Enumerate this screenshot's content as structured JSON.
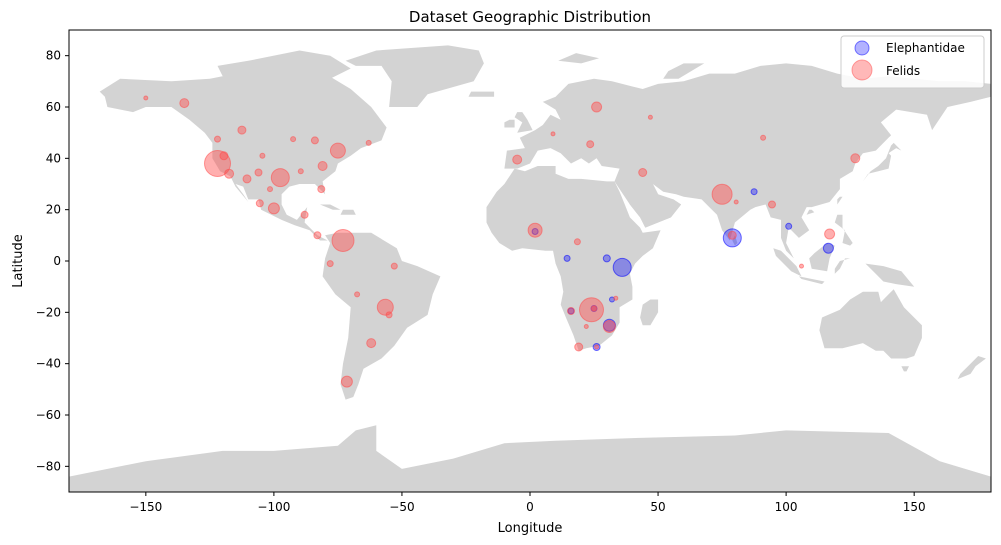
{
  "chart_data": {
    "type": "scatter",
    "title": "Dataset Geographic Distribution",
    "xlabel": "Longitude",
    "ylabel": "Latitude",
    "xlim": [
      -180,
      180
    ],
    "ylim": [
      -90,
      90
    ],
    "x_ticks": [
      -150,
      -100,
      -50,
      0,
      50,
      100,
      150
    ],
    "y_ticks": [
      -80,
      -60,
      -40,
      -20,
      0,
      20,
      40,
      60,
      80
    ],
    "grid": false,
    "legend_position": "top-right",
    "background": "world map (land in light gray)",
    "colors": {
      "land": "#d3d3d3",
      "Elephantidae": "#0000ff",
      "Felids": "#ff4d4d"
    },
    "series": [
      {
        "name": "Elephantidae",
        "color": "#0000ff",
        "points": [
          {
            "x": 36,
            "y": -2.5,
            "size": 9
          },
          {
            "x": 79,
            "y": 9,
            "size": 9
          },
          {
            "x": 31,
            "y": -25,
            "size": 6
          },
          {
            "x": 116.5,
            "y": 5,
            "size": 5
          },
          {
            "x": 30,
            "y": 1,
            "size": 3.5
          },
          {
            "x": 26,
            "y": -33.5,
            "size": 3.5
          },
          {
            "x": 87.5,
            "y": 27,
            "size": 3
          },
          {
            "x": 101,
            "y": 13.5,
            "size": 3
          },
          {
            "x": 14.5,
            "y": 1,
            "size": 3
          },
          {
            "x": 16,
            "y": -19.5,
            "size": 3
          },
          {
            "x": 32,
            "y": -15,
            "size": 2.5
          },
          {
            "x": 25,
            "y": -18.5,
            "size": 3
          },
          {
            "x": 2,
            "y": 11.5,
            "size": 3
          }
        ]
      },
      {
        "name": "Felids",
        "color": "#ff4d4d",
        "points": [
          {
            "x": -122,
            "y": 38,
            "size": 13
          },
          {
            "x": -73,
            "y": 8,
            "size": 11
          },
          {
            "x": 24,
            "y": -19,
            "size": 12
          },
          {
            "x": 75,
            "y": 26,
            "size": 10
          },
          {
            "x": -97.5,
            "y": 32.5,
            "size": 9
          },
          {
            "x": -56.5,
            "y": -18,
            "size": 8
          },
          {
            "x": -75,
            "y": 43,
            "size": 7.5
          },
          {
            "x": 2,
            "y": 12,
            "size": 7
          },
          {
            "x": 31,
            "y": -25.5,
            "size": 6
          },
          {
            "x": -71.5,
            "y": -47,
            "size": 5.5
          },
          {
            "x": -100,
            "y": 20.5,
            "size": 5.5
          },
          {
            "x": 117,
            "y": 10.5,
            "size": 5
          },
          {
            "x": 26,
            "y": 60,
            "size": 5
          },
          {
            "x": -62,
            "y": -32,
            "size": 4.5
          },
          {
            "x": -117.5,
            "y": 34,
            "size": 4.5
          },
          {
            "x": -135,
            "y": 61.5,
            "size": 4.5
          },
          {
            "x": -81,
            "y": 37,
            "size": 4.5
          },
          {
            "x": -5,
            "y": 39.5,
            "size": 4.5
          },
          {
            "x": 127,
            "y": 40,
            "size": 4.5
          },
          {
            "x": 79,
            "y": 10,
            "size": 4
          },
          {
            "x": 19,
            "y": -33.5,
            "size": 4
          },
          {
            "x": -112.5,
            "y": 51,
            "size": 4
          },
          {
            "x": -110.5,
            "y": 32,
            "size": 4
          },
          {
            "x": -119.5,
            "y": 41,
            "size": 4
          },
          {
            "x": 44,
            "y": 34.5,
            "size": 4
          },
          {
            "x": -83,
            "y": 10,
            "size": 3.5
          },
          {
            "x": 16,
            "y": -19.5,
            "size": 3.5
          },
          {
            "x": -106,
            "y": 34.5,
            "size": 3.5
          },
          {
            "x": -84,
            "y": 47,
            "size": 3.5
          },
          {
            "x": -81.5,
            "y": 28,
            "size": 3.5
          },
          {
            "x": 23.5,
            "y": 45.5,
            "size": 3.5
          },
          {
            "x": 94.5,
            "y": 22,
            "size": 3.5
          },
          {
            "x": -105.5,
            "y": 22.5,
            "size": 3.5
          },
          {
            "x": -88,
            "y": 18,
            "size": 3.5
          },
          {
            "x": -53,
            "y": -2,
            "size": 3
          },
          {
            "x": 18.5,
            "y": 7.5,
            "size": 3
          },
          {
            "x": -78,
            "y": -1,
            "size": 3
          },
          {
            "x": -55,
            "y": -21,
            "size": 3
          },
          {
            "x": -67.5,
            "y": -13,
            "size": 2.5
          },
          {
            "x": -92.5,
            "y": 47.5,
            "size": 2.5
          },
          {
            "x": -122,
            "y": 47.5,
            "size": 3
          },
          {
            "x": -104.5,
            "y": 41,
            "size": 2.5
          },
          {
            "x": -101.5,
            "y": 28,
            "size": 2.5
          },
          {
            "x": -89.5,
            "y": 35,
            "size": 2.5
          },
          {
            "x": -150,
            "y": 63.5,
            "size": 2
          },
          {
            "x": -63,
            "y": 46,
            "size": 2.5
          },
          {
            "x": 91,
            "y": 48,
            "size": 2.5
          },
          {
            "x": 47,
            "y": 56,
            "size": 2
          },
          {
            "x": 9,
            "y": 49.5,
            "size": 2
          },
          {
            "x": 22,
            "y": -25.5,
            "size": 2
          },
          {
            "x": 33.5,
            "y": -14.5,
            "size": 2
          },
          {
            "x": 106,
            "y": -2,
            "size": 2
          },
          {
            "x": 80.5,
            "y": 23,
            "size": 2
          },
          {
            "x": 25,
            "y": -18.5,
            "size": 2.5
          },
          {
            "x": 26,
            "y": -33.5,
            "size": 2
          }
        ]
      }
    ]
  }
}
